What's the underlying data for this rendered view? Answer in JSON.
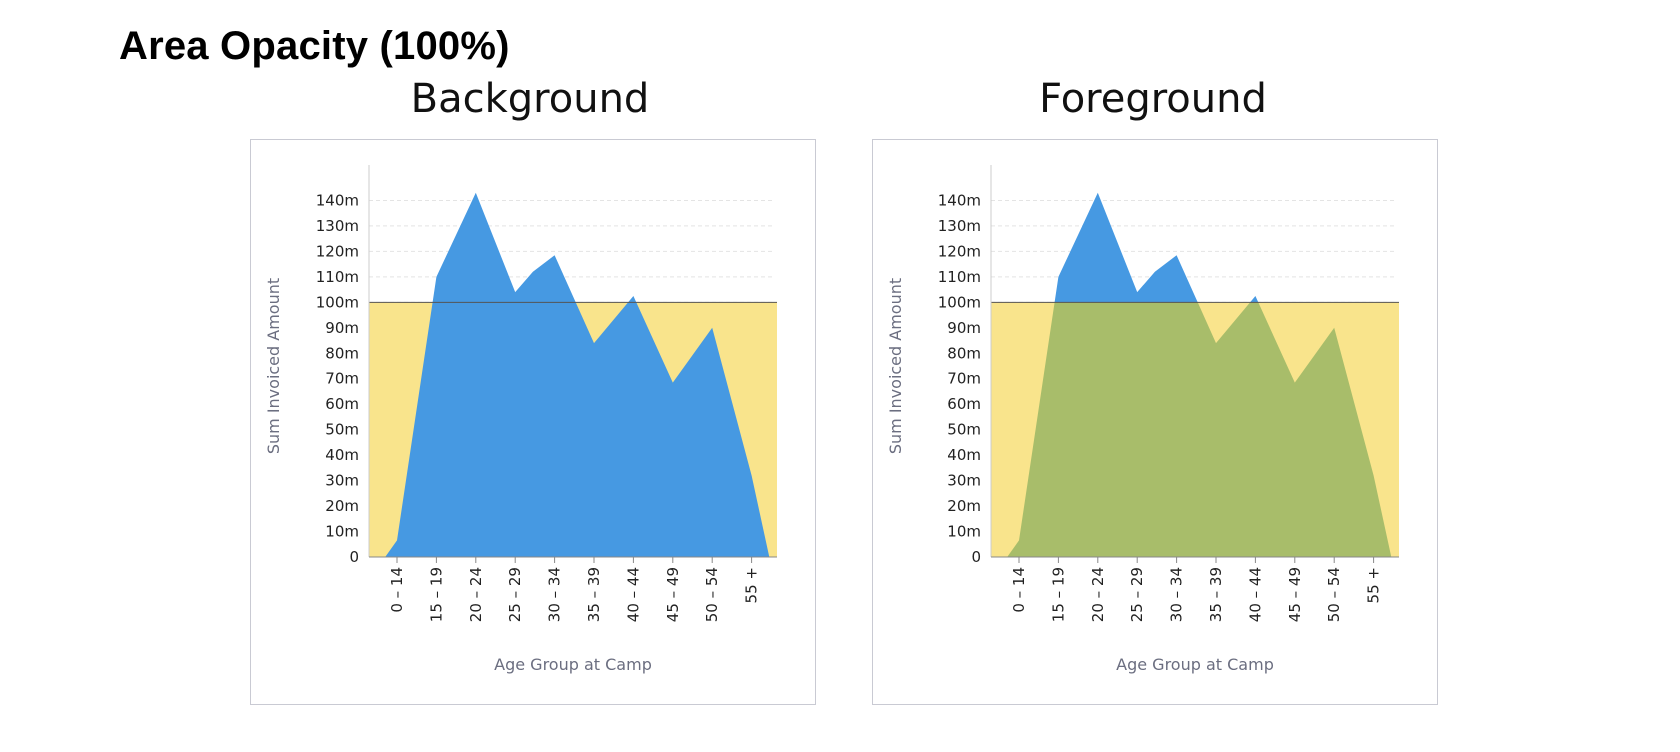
{
  "page": {
    "title": "Area Opacity (100%)"
  },
  "colors": {
    "area": "#4699e2",
    "band": "#f9e48c",
    "overlap": "#a8bd6a",
    "grid": "#e4e4e4",
    "frame": "#c9cad3",
    "baseline": "#555555"
  },
  "chart_data": [
    {
      "type": "area",
      "title": "Background",
      "band_layer": "background",
      "categories": [
        "0 – 14",
        "15 – 19",
        "20 – 24",
        "25 – 29",
        "30 – 34",
        "35 – 39",
        "40 – 44",
        "45 – 49",
        "50 – 54",
        "55 +"
      ],
      "points": [
        {
          "x": -0.3,
          "y": 0
        },
        {
          "x": 0,
          "y": 6.5
        },
        {
          "x": 1,
          "y": 110
        },
        {
          "x": 2,
          "y": 143
        },
        {
          "x": 3,
          "y": 104
        },
        {
          "x": 3.45,
          "y": 112
        },
        {
          "x": 4,
          "y": 118.5
        },
        {
          "x": 5,
          "y": 84
        },
        {
          "x": 6,
          "y": 102.5
        },
        {
          "x": 7,
          "y": 68.5
        },
        {
          "x": 8,
          "y": 90
        },
        {
          "x": 9,
          "y": 32
        },
        {
          "x": 9.45,
          "y": 0
        }
      ],
      "band": {
        "from": 0,
        "to": 100
      },
      "yticks": [
        "0",
        "10m",
        "20m",
        "30m",
        "40m",
        "50m",
        "60m",
        "70m",
        "80m",
        "90m",
        "100m",
        "110m",
        "120m",
        "130m",
        "140m"
      ],
      "ylim": [
        0,
        150
      ],
      "xlabel": "Age Group at Camp",
      "ylabel": "Sum Invoiced Amount",
      "grid": true
    },
    {
      "type": "area",
      "title": "Foreground",
      "band_layer": "foreground",
      "categories": [
        "0 – 14",
        "15 – 19",
        "20 – 24",
        "25 – 29",
        "30 – 34",
        "35 – 39",
        "40 – 44",
        "45 – 49",
        "50 – 54",
        "55 +"
      ],
      "points": [
        {
          "x": -0.3,
          "y": 0
        },
        {
          "x": 0,
          "y": 6.5
        },
        {
          "x": 1,
          "y": 110
        },
        {
          "x": 2,
          "y": 143
        },
        {
          "x": 3,
          "y": 104
        },
        {
          "x": 3.45,
          "y": 112
        },
        {
          "x": 4,
          "y": 118.5
        },
        {
          "x": 5,
          "y": 84
        },
        {
          "x": 6,
          "y": 102.5
        },
        {
          "x": 7,
          "y": 68.5
        },
        {
          "x": 8,
          "y": 90
        },
        {
          "x": 9,
          "y": 32
        },
        {
          "x": 9.45,
          "y": 0
        }
      ],
      "band": {
        "from": 0,
        "to": 100
      },
      "yticks": [
        "0",
        "10m",
        "20m",
        "30m",
        "40m",
        "50m",
        "60m",
        "70m",
        "80m",
        "90m",
        "100m",
        "110m",
        "120m",
        "130m",
        "140m"
      ],
      "ylim": [
        0,
        150
      ],
      "xlabel": "Age Group at Camp",
      "ylabel": "Sum Invoiced Amount",
      "grid": true
    }
  ]
}
